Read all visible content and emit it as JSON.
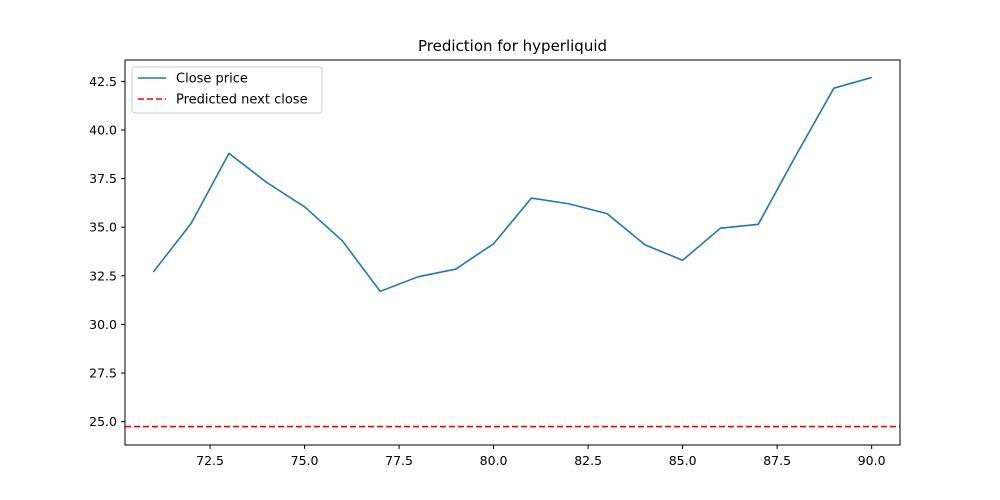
{
  "chart_data": {
    "type": "line",
    "title": "Prediction for hyperliquid",
    "xlabel": "",
    "ylabel": "",
    "xlim": [
      70.25,
      90.75
    ],
    "ylim": [
      23.8,
      43.6
    ],
    "xticks": [
      72.5,
      75.0,
      77.5,
      80.0,
      82.5,
      85.0,
      87.5,
      90.0
    ],
    "xtick_labels": [
      "72.5",
      "75.0",
      "77.5",
      "80.0",
      "82.5",
      "85.0",
      "87.5",
      "90.0"
    ],
    "yticks": [
      25.0,
      27.5,
      30.0,
      32.5,
      35.0,
      37.5,
      40.0,
      42.5
    ],
    "ytick_labels": [
      "25.0",
      "27.5",
      "30.0",
      "32.5",
      "35.0",
      "37.5",
      "40.0",
      "42.5"
    ],
    "grid": false,
    "legend_position": "top-left",
    "series": [
      {
        "name": "Close price",
        "color": "#1f77b4",
        "style": "solid",
        "x": [
          71,
          72,
          73,
          74,
          75,
          76,
          77,
          78,
          79,
          80,
          81,
          82,
          83,
          84,
          85,
          86,
          87,
          88,
          89,
          90
        ],
        "values": [
          32.7,
          35.2,
          38.8,
          37.3,
          36.05,
          34.3,
          31.7,
          32.45,
          32.85,
          34.15,
          36.5,
          36.2,
          35.7,
          34.1,
          33.3,
          34.95,
          35.15,
          38.7,
          42.15,
          42.7
        ]
      },
      {
        "name": "Predicted next close",
        "color": "#ff0000",
        "style": "dashed",
        "type": "hline",
        "value": 24.75
      }
    ]
  }
}
